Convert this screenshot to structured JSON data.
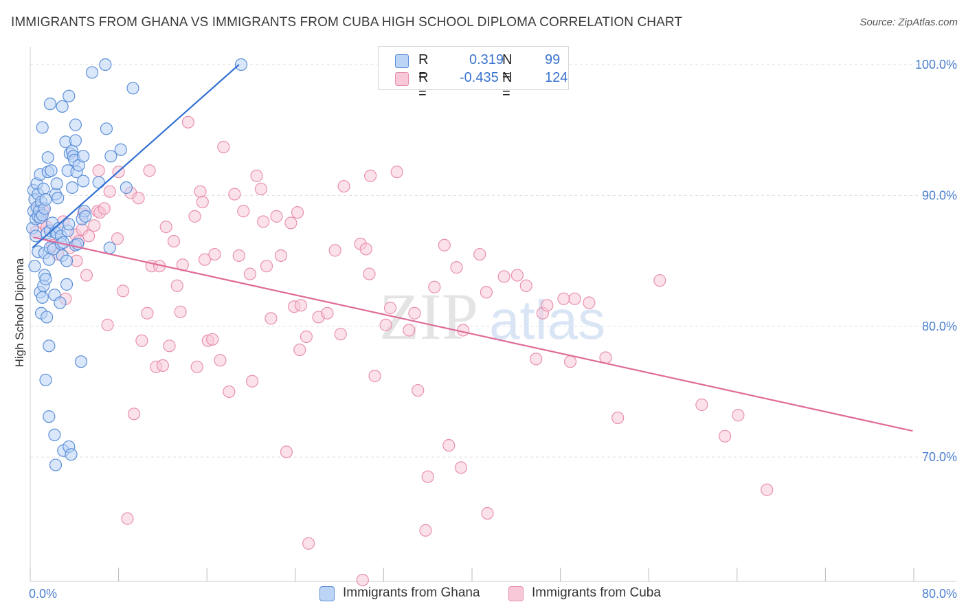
{
  "title": "IMMIGRANTS FROM GHANA VS IMMIGRANTS FROM CUBA HIGH SCHOOL DIPLOMA CORRELATION CHART",
  "source": "Source: ZipAtlas.com",
  "watermark": {
    "part1": "ZIP",
    "part2": "atlas"
  },
  "legend_stats": {
    "ghana": {
      "r_label": "R =",
      "r_value": "0.319",
      "n_label": "N =",
      "n_value": "99"
    },
    "cuba": {
      "r_label": "R =",
      "r_value": "-0.435",
      "n_label": "N =",
      "n_value": "124"
    }
  },
  "colors": {
    "ghana_fill": "#bcd4f5",
    "ghana_stroke": "#5b8fd8",
    "ghana_line": "#2f6fd1",
    "cuba_fill": "#f8c8d8",
    "cuba_stroke": "#e890ad",
    "cuba_line": "#e06b98",
    "tick_label": "#4a7fd0",
    "grid": "#dddddd"
  },
  "chart_data": {
    "type": "scatter",
    "title": "IMMIGRANTS FROM GHANA VS IMMIGRANTS FROM CUBA HIGH SCHOOL DIPLOMA CORRELATION CHART",
    "xlabel": "",
    "ylabel": "High School Diploma",
    "xlim": [
      0,
      80
    ],
    "ylim": [
      60.5,
      101
    ],
    "x_ticks": [
      {
        "value": 0,
        "label": "0.0%"
      },
      {
        "value": 80,
        "label": "80.0%"
      }
    ],
    "y_ticks": [
      {
        "value": 70,
        "label": "70.0%"
      },
      {
        "value": 80,
        "label": "80.0%"
      },
      {
        "value": 90,
        "label": "90.0%"
      },
      {
        "value": 100,
        "label": "100.0%"
      }
    ],
    "grid": true,
    "legend_position": "bottom-center",
    "series": [
      {
        "name": "Immigrants from Ghana",
        "r": 0.319,
        "n": 99,
        "trend": {
          "x0": 0.2,
          "y0": 86.0,
          "x1": 18.9,
          "y1": 100.0
        },
        "points": [
          [
            0.2,
            87.5
          ],
          [
            0.3,
            88.8
          ],
          [
            0.3,
            90.4
          ],
          [
            0.4,
            89.7
          ],
          [
            0.4,
            84.6
          ],
          [
            0.5,
            86.9
          ],
          [
            0.5,
            88.2
          ],
          [
            0.6,
            90.9
          ],
          [
            0.6,
            89.1
          ],
          [
            0.7,
            88.4
          ],
          [
            0.7,
            90.1
          ],
          [
            0.7,
            85.7
          ],
          [
            0.8,
            88.8
          ],
          [
            0.9,
            91.6
          ],
          [
            0.9,
            88.3
          ],
          [
            0.9,
            82.6
          ],
          [
            1.0,
            89.5
          ],
          [
            1.0,
            81.0
          ],
          [
            1.1,
            95.2
          ],
          [
            1.1,
            88.5
          ],
          [
            1.1,
            82.2
          ],
          [
            1.2,
            90.5
          ],
          [
            1.2,
            83.1
          ],
          [
            1.3,
            89.0
          ],
          [
            1.3,
            85.6
          ],
          [
            1.3,
            83.9
          ],
          [
            1.4,
            89.7
          ],
          [
            1.4,
            83.6
          ],
          [
            1.4,
            75.9
          ],
          [
            1.5,
            87.1
          ],
          [
            1.5,
            80.7
          ],
          [
            1.6,
            92.9
          ],
          [
            1.6,
            91.8
          ],
          [
            1.7,
            85.1
          ],
          [
            1.7,
            78.5
          ],
          [
            1.7,
            73.1
          ],
          [
            1.8,
            97.0
          ],
          [
            1.8,
            87.3
          ],
          [
            1.8,
            86.0
          ],
          [
            1.9,
            91.9
          ],
          [
            2.0,
            87.9
          ],
          [
            2.1,
            85.9
          ],
          [
            2.2,
            82.4
          ],
          [
            2.2,
            71.7
          ],
          [
            2.3,
            90.1
          ],
          [
            2.3,
            87.2
          ],
          [
            2.3,
            69.4
          ],
          [
            2.4,
            90.9
          ],
          [
            2.4,
            87.1
          ],
          [
            2.5,
            89.8
          ],
          [
            2.6,
            87.5
          ],
          [
            2.7,
            81.8
          ],
          [
            2.8,
            86.9
          ],
          [
            2.8,
            86.3
          ],
          [
            2.9,
            96.8
          ],
          [
            2.9,
            85.4
          ],
          [
            3.0,
            86.4
          ],
          [
            3.0,
            70.5
          ],
          [
            3.2,
            94.1
          ],
          [
            3.3,
            83.2
          ],
          [
            3.3,
            85.0
          ],
          [
            3.4,
            91.9
          ],
          [
            3.4,
            87.3
          ],
          [
            3.5,
            97.6
          ],
          [
            3.5,
            87.8
          ],
          [
            3.5,
            70.8
          ],
          [
            3.6,
            93.2
          ],
          [
            3.7,
            70.2
          ],
          [
            3.8,
            93.4
          ],
          [
            3.8,
            90.6
          ],
          [
            3.9,
            93.0
          ],
          [
            4.0,
            92.7
          ],
          [
            4.1,
            95.4
          ],
          [
            4.1,
            94.2
          ],
          [
            4.1,
            86.2
          ],
          [
            4.2,
            91.8
          ],
          [
            4.3,
            86.3
          ],
          [
            4.4,
            92.3
          ],
          [
            4.6,
            77.3
          ],
          [
            4.7,
            88.2
          ],
          [
            4.8,
            93.0
          ],
          [
            4.8,
            91.1
          ],
          [
            4.9,
            88.8
          ],
          [
            5.0,
            88.4
          ],
          [
            5.6,
            99.4
          ],
          [
            6.2,
            91.0
          ],
          [
            6.8,
            100.0
          ],
          [
            6.9,
            95.1
          ],
          [
            7.2,
            86.0
          ],
          [
            7.3,
            93.0
          ],
          [
            8.2,
            93.5
          ],
          [
            8.7,
            90.6
          ],
          [
            9.3,
            98.2
          ],
          [
            19.1,
            100.0
          ]
        ]
      },
      {
        "name": "Immigrants from Cuba",
        "r": -0.435,
        "n": 124,
        "trend": {
          "x0": 0.3,
          "y0": 86.8,
          "x1": 79.9,
          "y1": 72.0
        },
        "points": [
          [
            0.5,
            87.2
          ],
          [
            0.8,
            89.1
          ],
          [
            1.0,
            88.0
          ],
          [
            1.2,
            88.8
          ],
          [
            1.5,
            87.6
          ],
          [
            2.0,
            86.2
          ],
          [
            2.5,
            85.5
          ],
          [
            3.0,
            88.0
          ],
          [
            3.2,
            82.1
          ],
          [
            3.6,
            86.0
          ],
          [
            4.1,
            87.0
          ],
          [
            4.2,
            85.0
          ],
          [
            4.4,
            86.5
          ],
          [
            4.7,
            87.4
          ],
          [
            4.8,
            88.6
          ],
          [
            5.1,
            83.9
          ],
          [
            5.3,
            86.9
          ],
          [
            5.8,
            87.7
          ],
          [
            6.1,
            88.8
          ],
          [
            6.2,
            91.9
          ],
          [
            6.3,
            88.7
          ],
          [
            6.7,
            89.0
          ],
          [
            7.0,
            80.1
          ],
          [
            7.2,
            90.3
          ],
          [
            7.9,
            86.7
          ],
          [
            8.0,
            91.8
          ],
          [
            8.4,
            82.7
          ],
          [
            8.8,
            65.3
          ],
          [
            9.1,
            90.2
          ],
          [
            9.4,
            73.3
          ],
          [
            9.8,
            89.8
          ],
          [
            10.1,
            78.9
          ],
          [
            10.6,
            81.0
          ],
          [
            10.8,
            91.9
          ],
          [
            11.0,
            84.6
          ],
          [
            11.4,
            76.9
          ],
          [
            11.7,
            84.6
          ],
          [
            12.0,
            77.0
          ],
          [
            12.3,
            87.6
          ],
          [
            12.6,
            78.5
          ],
          [
            13.0,
            86.5
          ],
          [
            13.3,
            83.1
          ],
          [
            13.6,
            81.1
          ],
          [
            13.8,
            84.7
          ],
          [
            14.3,
            95.6
          ],
          [
            14.9,
            88.4
          ],
          [
            15.1,
            76.9
          ],
          [
            15.4,
            90.3
          ],
          [
            15.6,
            89.5
          ],
          [
            15.8,
            85.1
          ],
          [
            16.1,
            78.9
          ],
          [
            16.5,
            79.0
          ],
          [
            16.7,
            85.5
          ],
          [
            17.2,
            77.4
          ],
          [
            17.5,
            93.7
          ],
          [
            18.0,
            75.0
          ],
          [
            18.5,
            90.1
          ],
          [
            18.9,
            85.4
          ],
          [
            19.3,
            88.8
          ],
          [
            19.9,
            84.0
          ],
          [
            20.1,
            75.8
          ],
          [
            20.5,
            91.5
          ],
          [
            20.9,
            90.5
          ],
          [
            21.1,
            88.0
          ],
          [
            21.4,
            84.6
          ],
          [
            21.8,
            80.6
          ],
          [
            22.3,
            88.4
          ],
          [
            22.7,
            85.4
          ],
          [
            23.2,
            70.4
          ],
          [
            23.6,
            87.9
          ],
          [
            23.9,
            81.5
          ],
          [
            24.2,
            88.7
          ],
          [
            24.4,
            78.2
          ],
          [
            24.5,
            81.6
          ],
          [
            25.0,
            79.2
          ],
          [
            25.2,
            63.4
          ],
          [
            26.1,
            80.7
          ],
          [
            26.9,
            81.0
          ],
          [
            27.6,
            85.8
          ],
          [
            28.1,
            79.4
          ],
          [
            28.4,
            90.7
          ],
          [
            29.9,
            86.3
          ],
          [
            30.4,
            85.9
          ],
          [
            30.7,
            84.0
          ],
          [
            30.8,
            91.5
          ],
          [
            31.2,
            76.2
          ],
          [
            32.2,
            80.1
          ],
          [
            32.6,
            81.4
          ],
          [
            33.2,
            91.8
          ],
          [
            34.3,
            79.7
          ],
          [
            34.8,
            81.0
          ],
          [
            35.1,
            75.1
          ],
          [
            35.8,
            64.4
          ],
          [
            36.0,
            68.5
          ],
          [
            36.6,
            83.0
          ],
          [
            37.5,
            86.2
          ],
          [
            37.9,
            70.9
          ],
          [
            38.6,
            84.5
          ],
          [
            39.0,
            69.2
          ],
          [
            39.2,
            79.7
          ],
          [
            40.7,
            85.5
          ],
          [
            41.3,
            82.6
          ],
          [
            41.4,
            65.7
          ],
          [
            42.9,
            83.8
          ],
          [
            44.1,
            83.9
          ],
          [
            44.9,
            83.1
          ],
          [
            45.8,
            77.5
          ],
          [
            46.4,
            81.0
          ],
          [
            46.8,
            81.6
          ],
          [
            48.3,
            82.1
          ],
          [
            48.9,
            77.3
          ],
          [
            49.3,
            82.1
          ],
          [
            50.6,
            81.8
          ],
          [
            52.1,
            77.6
          ],
          [
            53.2,
            73.0
          ],
          [
            57.0,
            83.5
          ],
          [
            60.8,
            74.0
          ],
          [
            62.9,
            71.6
          ],
          [
            64.1,
            73.2
          ],
          [
            66.7,
            67.5
          ],
          [
            30.1,
            60.6
          ]
        ]
      }
    ]
  },
  "bottom_legend": [
    {
      "key": "ghana",
      "label": "Immigrants from Ghana"
    },
    {
      "key": "cuba",
      "label": "Immigrants from Cuba"
    }
  ]
}
